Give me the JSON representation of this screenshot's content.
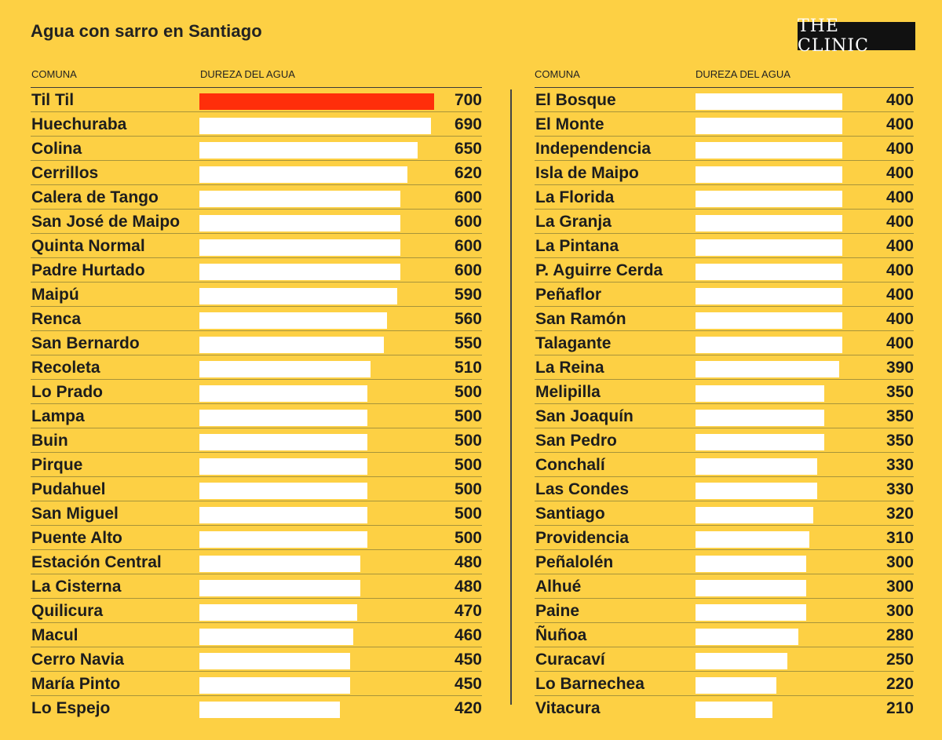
{
  "title": "Agua con sarro en Santiago",
  "brand": "THE CLINIC",
  "colors": {
    "background": "#FDD044",
    "bar": "#ffffff",
    "highlight": "#FF2E0A",
    "brand_bg": "#111111"
  },
  "headers": {
    "comuna": "COMUNA",
    "dureza": "DUREZA DEL AGUA"
  },
  "chart_data": {
    "type": "bar",
    "orientation": "horizontal",
    "title": "Agua con sarro en Santiago",
    "xlabel": "DUREZA DEL AGUA",
    "ylabel": "COMUNA",
    "xlim": [
      0,
      700
    ],
    "highlight": "Til Til",
    "columns": [
      {
        "categories": [
          "Til Til",
          "Huechuraba",
          "Colina",
          "Cerrillos",
          "Calera de Tango",
          "San José de Maipo",
          "Quinta Normal",
          "Padre Hurtado",
          "Maipú",
          "Renca",
          "San Bernardo",
          "Recoleta",
          "Lo Prado",
          "Lampa",
          "Buin",
          "Pirque",
          "Pudahuel",
          "San Miguel",
          "Puente Alto",
          "Estación Central",
          "La Cisterna",
          "Quilicura",
          "Macul",
          "Cerro Navia",
          "María Pinto",
          "Lo Espejo"
        ],
        "values": [
          700,
          690,
          650,
          620,
          600,
          600,
          600,
          600,
          590,
          560,
          550,
          510,
          500,
          500,
          500,
          500,
          500,
          500,
          500,
          480,
          480,
          470,
          460,
          450,
          450,
          420
        ]
      },
      {
        "categories": [
          "El Bosque",
          "El Monte",
          "Independencia",
          "Isla de Maipo",
          "La Florida",
          "La Granja",
          "La Pintana",
          "P. Aguirre Cerda",
          "Peñaflor",
          "San Ramón",
          "Talagante",
          "La Reina",
          "Melipilla",
          "San Joaquín",
          "San Pedro",
          "Conchalí",
          "Las Condes",
          "Santiago",
          "Providencia",
          "Peñalolén",
          "Alhué",
          "Paine",
          "Ñuñoa",
          "Curacaví",
          "Lo Barnechea",
          "Vitacura"
        ],
        "values": [
          400,
          400,
          400,
          400,
          400,
          400,
          400,
          400,
          400,
          400,
          400,
          390,
          350,
          350,
          350,
          330,
          330,
          320,
          310,
          300,
          300,
          300,
          280,
          250,
          220,
          210
        ]
      }
    ]
  }
}
